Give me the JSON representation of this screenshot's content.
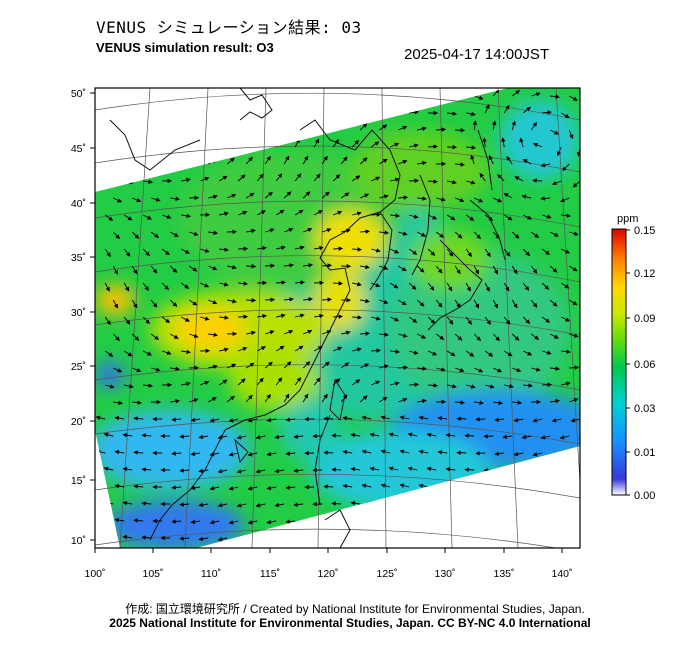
{
  "header": {
    "title_jp": "VENUS シミュレーション結果: 03",
    "title_en": "VENUS simulation result: O3",
    "timestamp": "2025-04-17 14:00JST"
  },
  "map": {
    "lon_ticks": [
      "100˚",
      "105˚",
      "110˚",
      "115˚",
      "120˚",
      "125˚",
      "130˚",
      "135˚",
      "140˚"
    ],
    "lat_ticks": [
      "50˚",
      "45˚",
      "40˚",
      "35˚",
      "30˚",
      "25˚",
      "20˚",
      "15˚",
      "10˚"
    ],
    "field": "O3 concentration",
    "wind_vectors": true
  },
  "colorbar": {
    "unit": "ppm",
    "ticks": [
      "0.15",
      "0.12",
      "0.09",
      "0.06",
      "0.03",
      "0.01",
      "0.00"
    ],
    "colors": [
      "#ffffff",
      "#2030c0",
      "#1890ff",
      "#00d8d0",
      "#18d030",
      "#a8e000",
      "#ffe000",
      "#ff8000",
      "#e00000"
    ]
  },
  "footer": {
    "credit_jp_en": "作成: 国立環境研究所 / Created by National Institute for Environmental Studies, Japan.",
    "license": "2025 National Institute for Environmental Studies, Japan. CC BY-NC 4.0 International"
  }
}
